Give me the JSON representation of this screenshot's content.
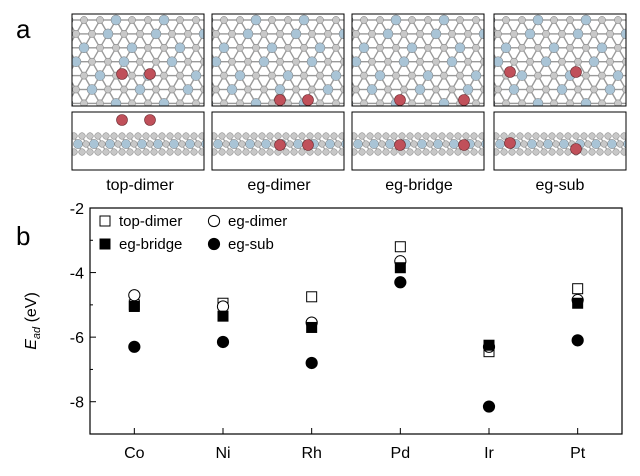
{
  "figure": {
    "panel_a_letter": "a",
    "panel_b_letter": "b",
    "structures": [
      {
        "label": "top-dimer",
        "config": "top-dimer"
      },
      {
        "label": "eg-dimer",
        "config": "eg-dimer"
      },
      {
        "label": "eg-bridge",
        "config": "eg-bridge"
      },
      {
        "label": "eg-sub",
        "config": "eg-sub"
      }
    ],
    "colors": {
      "metal_atom": "#a9c4d6",
      "boron_atom": "#c8c8c8",
      "oxygen_atom": "#c0505a",
      "bond": "#9a9a9a"
    }
  },
  "chart_data": {
    "type": "scatter",
    "categories": [
      "Co",
      "Ni",
      "Rh",
      "Pd",
      "Ir",
      "Pt"
    ],
    "ylabel_main": "E",
    "ylabel_sub": "ad",
    "ylabel_unit": " (eV)",
    "ylim": [
      -9,
      -2
    ],
    "yticks": [
      -2,
      -4,
      -6,
      -8
    ],
    "grid": false,
    "legend_position": "top-left",
    "series": [
      {
        "name": "top-dimer",
        "marker": "open-square",
        "values": [
          -5.0,
          -4.95,
          -4.75,
          -3.2,
          -6.45,
          -4.5
        ]
      },
      {
        "name": "eg-dimer",
        "marker": "open-circle",
        "values": [
          -4.7,
          -5.05,
          -5.55,
          -3.65,
          -6.3,
          -4.85
        ]
      },
      {
        "name": "eg-bridge",
        "marker": "filled-square",
        "values": [
          -5.05,
          -5.35,
          -5.7,
          -3.85,
          -6.25,
          -4.95
        ]
      },
      {
        "name": "eg-sub",
        "marker": "filled-circle",
        "values": [
          -6.3,
          -6.15,
          -6.8,
          -4.3,
          -8.15,
          -6.1
        ]
      }
    ]
  }
}
